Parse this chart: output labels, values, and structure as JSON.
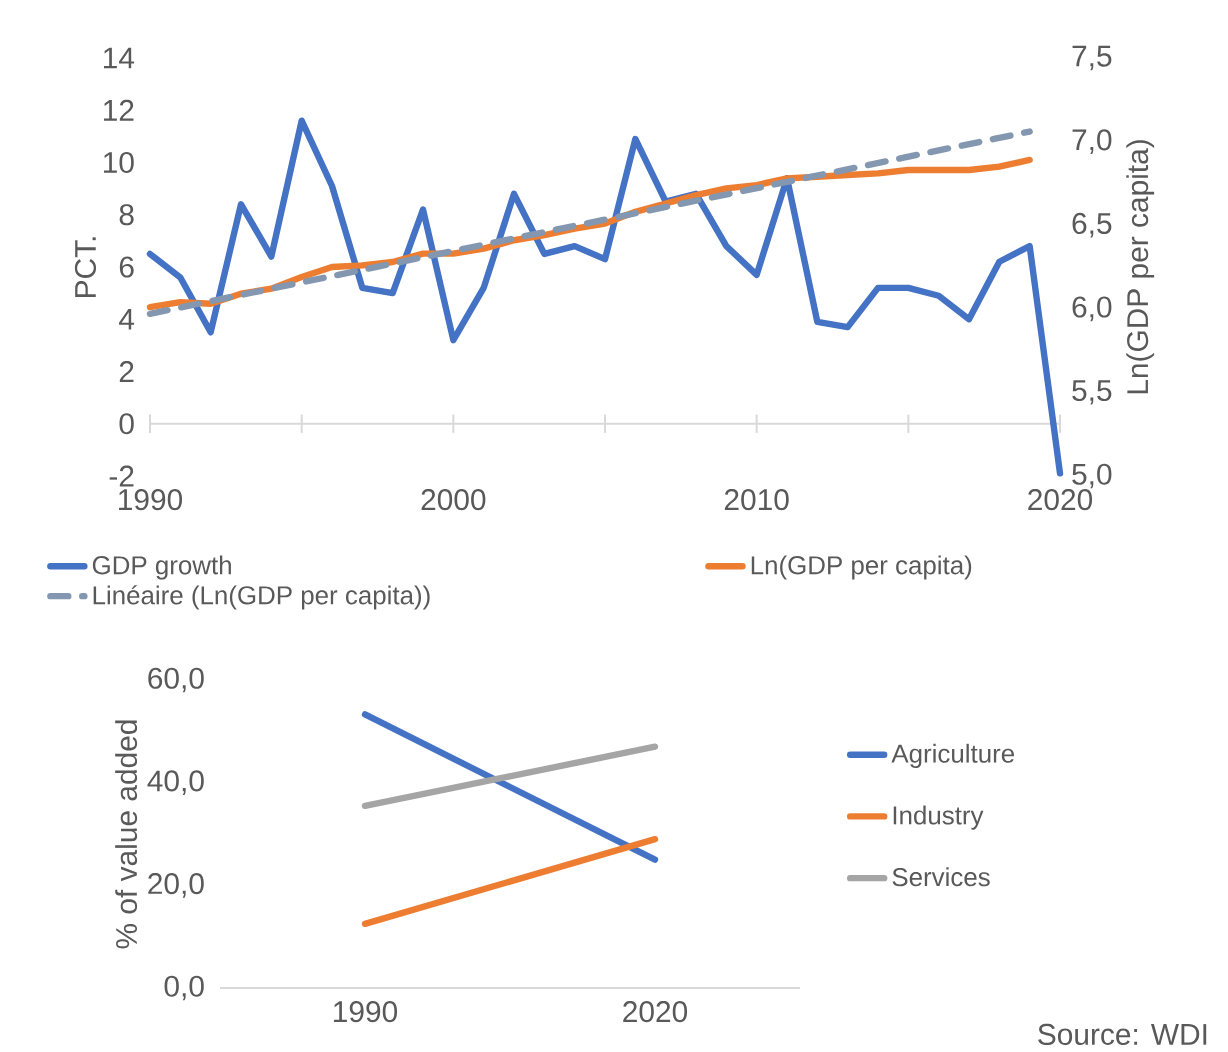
{
  "chart_data": [
    {
      "type": "line",
      "x": [
        1990,
        1991,
        1992,
        1993,
        1994,
        1995,
        1996,
        1997,
        1998,
        1999,
        2000,
        2001,
        2002,
        2003,
        2004,
        2005,
        2006,
        2007,
        2008,
        2009,
        2010,
        2011,
        2012,
        2013,
        2014,
        2015,
        2016,
        2017,
        2018,
        2019,
        2020
      ],
      "series": [
        {
          "name": "GDP growth",
          "color": "#4472c4",
          "values": [
            6.5,
            5.6,
            3.5,
            8.4,
            6.4,
            11.6,
            9.1,
            5.2,
            5.0,
            8.2,
            3.2,
            5.2,
            8.8,
            6.5,
            6.8,
            6.3,
            10.9,
            8.5,
            8.8,
            6.8,
            5.7,
            9.4,
            3.9,
            3.7,
            5.2,
            5.2,
            4.9,
            4.0,
            6.2,
            6.8,
            -1.9
          ]
        },
        {
          "name": "Ln(GDP per capita)",
          "color": "#ed7d31",
          "axis": "y2",
          "values": [
            6.01,
            6.04,
            6.03,
            6.09,
            6.12,
            6.19,
            6.25,
            6.26,
            6.28,
            6.33,
            6.33,
            6.36,
            6.41,
            6.44,
            6.48,
            6.51,
            6.58,
            6.63,
            6.68,
            6.72,
            6.74,
            6.78,
            6.79,
            6.8,
            6.81,
            6.83,
            6.83,
            6.83,
            6.85,
            6.89,
            null
          ]
        },
        {
          "name": "Linéaire (Ln(GDP per capita))",
          "color": "#8497b0",
          "axis": "y2",
          "line_style": "dashed",
          "x": [
            1990,
            2019
          ],
          "values": [
            5.97,
            7.06
          ]
        }
      ],
      "xlim": [
        1990,
        2020
      ],
      "xticks": [
        1990,
        {
          "value": 1995,
          "label": null
        },
        2000,
        {
          "value": 2005,
          "label": null
        },
        2010,
        {
          "value": 2015,
          "label": null
        },
        2020
      ],
      "ylim": [
        -2,
        14
      ],
      "yticks": [
        -2,
        0,
        2,
        4,
        6,
        8,
        10,
        12,
        14
      ],
      "y2lim": [
        5.0,
        7.5
      ],
      "y2ticks": [
        {
          "value": 5.0,
          "label": "5,0"
        },
        {
          "value": 5.5,
          "label": "5,5"
        },
        {
          "value": 6.0,
          "label": "6,0"
        },
        {
          "value": 6.5,
          "label": "6,5"
        },
        {
          "value": 7.0,
          "label": "7,0"
        },
        {
          "value": 7.5,
          "label": "7,5"
        }
      ],
      "ylabel": "PCT.",
      "y2label": "Ln(GDP per capita)",
      "legend": "bottom",
      "marker": "none"
    },
    {
      "type": "line",
      "categories": [
        "1990",
        "2020"
      ],
      "series": [
        {
          "name": "Agriculture",
          "color": "#4472c4",
          "values": [
            53.3,
            25.0
          ]
        },
        {
          "name": "Industry",
          "color": "#ed7d31",
          "values": [
            12.5,
            29.0
          ]
        },
        {
          "name": "Services",
          "color": "#a5a5a5",
          "values": [
            35.5,
            47.0
          ]
        }
      ],
      "ylim": [
        0,
        60
      ],
      "yticks": [
        {
          "value": 0,
          "label": "0,0"
        },
        {
          "value": 20,
          "label": "20,0"
        },
        {
          "value": 40,
          "label": "40,0"
        },
        {
          "value": 60,
          "label": "60,0"
        }
      ],
      "ylabel": "% of value added",
      "legend": "right",
      "marker": "none",
      "annotations": [
        "Source: WDI"
      ]
    }
  ]
}
